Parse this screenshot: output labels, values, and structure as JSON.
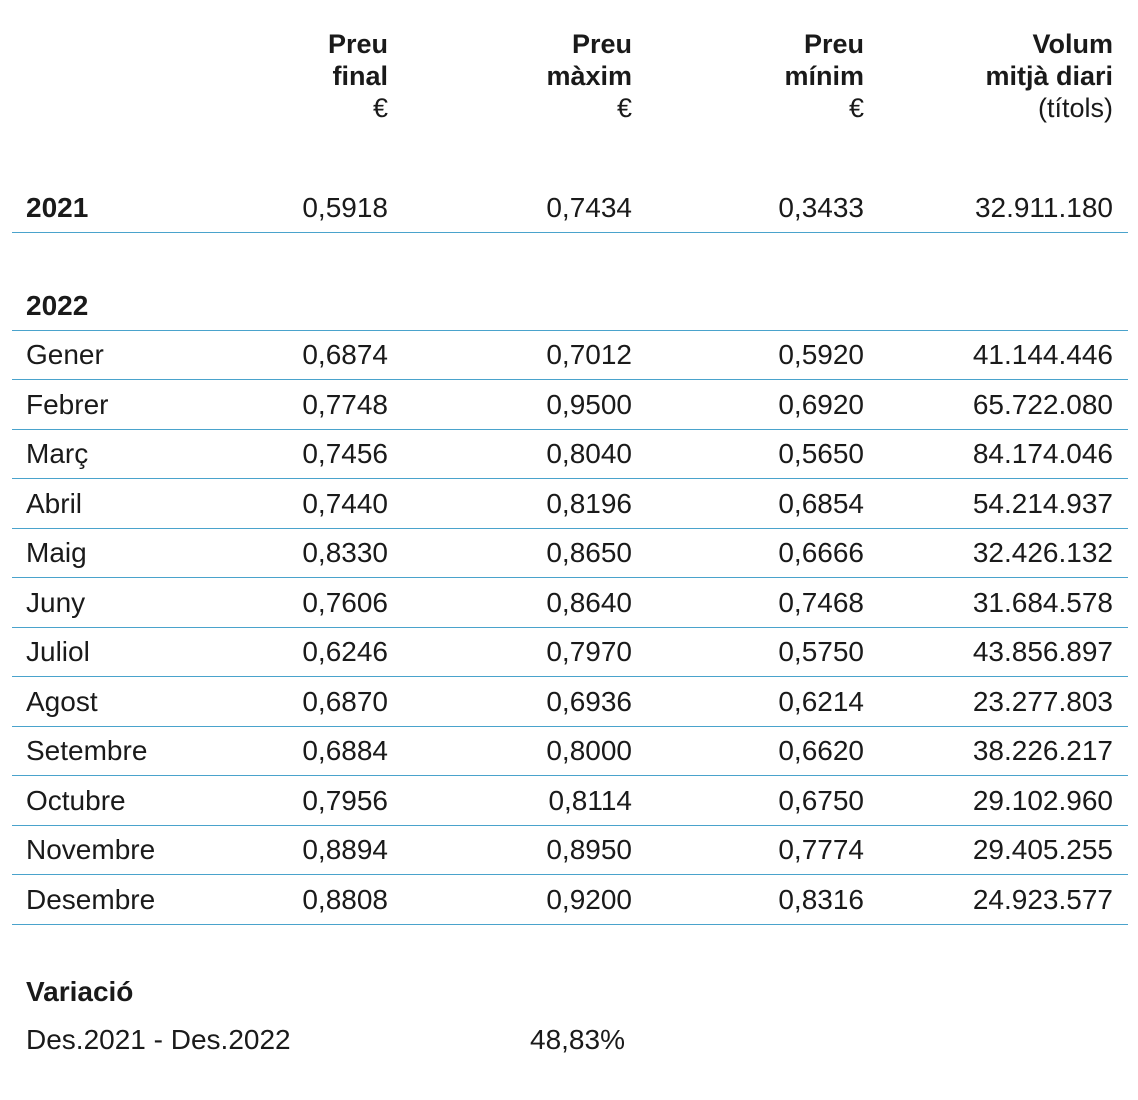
{
  "header": {
    "col1": {
      "line1": "Preu",
      "line2": "final",
      "unit": "€"
    },
    "col2": {
      "line1": "Preu",
      "line2": "màxim",
      "unit": "€"
    },
    "col3": {
      "line1": "Preu",
      "line2": "mínim",
      "unit": "€"
    },
    "col4": {
      "line1": "Volum",
      "line2": "mitjà diari",
      "unit": "(títols)"
    }
  },
  "year2021": {
    "label": "2021",
    "final": "0,5918",
    "max": "0,7434",
    "min": "0,3433",
    "volume": "32.911.180"
  },
  "year2022": {
    "label": "2022",
    "rows": [
      {
        "month": "Gener",
        "final": "0,6874",
        "max": "0,7012",
        "min": "0,5920",
        "volume": "41.144.446"
      },
      {
        "month": "Febrer",
        "final": "0,7748",
        "max": "0,9500",
        "min": "0,6920",
        "volume": "65.722.080"
      },
      {
        "month": "Març",
        "final": "0,7456",
        "max": "0,8040",
        "min": "0,5650",
        "volume": "84.174.046"
      },
      {
        "month": "Abril",
        "final": "0,7440",
        "max": "0,8196",
        "min": "0,6854",
        "volume": "54.214.937"
      },
      {
        "month": "Maig",
        "final": "0,8330",
        "max": "0,8650",
        "min": "0,6666",
        "volume": "32.426.132"
      },
      {
        "month": "Juny",
        "final": "0,7606",
        "max": "0,8640",
        "min": "0,7468",
        "volume": "31.684.578"
      },
      {
        "month": "Juliol",
        "final": "0,6246",
        "max": "0,7970",
        "min": "0,5750",
        "volume": "43.856.897"
      },
      {
        "month": "Agost",
        "final": "0,6870",
        "max": "0,6936",
        "min": "0,6214",
        "volume": "23.277.803"
      },
      {
        "month": "Setembre",
        "final": "0,6884",
        "max": "0,8000",
        "min": "0,6620",
        "volume": "38.226.217"
      },
      {
        "month": "Octubre",
        "final": "0,7956",
        "max": "0,8114",
        "min": "0,6750",
        "volume": "29.102.960"
      },
      {
        "month": "Novembre",
        "final": "0,8894",
        "max": "0,8950",
        "min": "0,7774",
        "volume": "29.405.255"
      },
      {
        "month": "Desembre",
        "final": "0,8808",
        "max": "0,9200",
        "min": "0,8316",
        "volume": "24.923.577"
      }
    ]
  },
  "variation": {
    "title": "Variació",
    "label": "Des.2021 - Des.2022",
    "value": "48,83%"
  },
  "colors": {
    "rule": "#4aa3cc",
    "text": "#1a1a1a"
  }
}
